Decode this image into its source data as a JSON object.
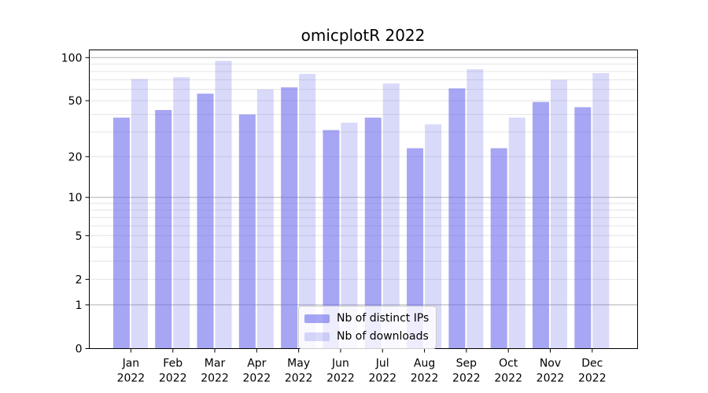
{
  "chart_data": {
    "type": "bar",
    "title": "omicplotR 2022",
    "categories": [
      "Jan 2022",
      "Feb 2022",
      "Mar 2022",
      "Apr 2022",
      "May 2022",
      "Jun 2022",
      "Jul 2022",
      "Aug 2022",
      "Sep 2022",
      "Oct 2022",
      "Nov 2022",
      "Dec 2022"
    ],
    "series": [
      {
        "name": "Nb of distinct IPs",
        "color": "#6666ec",
        "opacity": 0.58,
        "values": [
          38,
          43,
          56,
          40,
          62,
          31,
          38,
          23,
          61,
          23,
          49,
          45
        ]
      },
      {
        "name": "Nb of downloads",
        "color": "#6666ec",
        "opacity": 0.25,
        "values": [
          71,
          73,
          95,
          60,
          77,
          35,
          66,
          34,
          83,
          38,
          70,
          78
        ]
      }
    ],
    "y_axis": {
      "scale": "log1p",
      "tick_values": [
        100,
        50,
        20,
        10,
        5,
        2,
        1,
        0
      ],
      "tick_labels": [
        "100",
        "50",
        "20",
        "10",
        "5",
        "2",
        "1",
        "0"
      ],
      "ylim": [
        0,
        113
      ]
    },
    "x_axis": {
      "tick_label_lines": 2
    },
    "legend": {
      "position": "bottom-center"
    },
    "grid": true,
    "colors": {
      "decade_gridline": "#b0b0b0",
      "minor_gridline": "#e4e4e4",
      "spine": "#000000",
      "tick_text": "#000000",
      "background": "#ffffff"
    }
  }
}
